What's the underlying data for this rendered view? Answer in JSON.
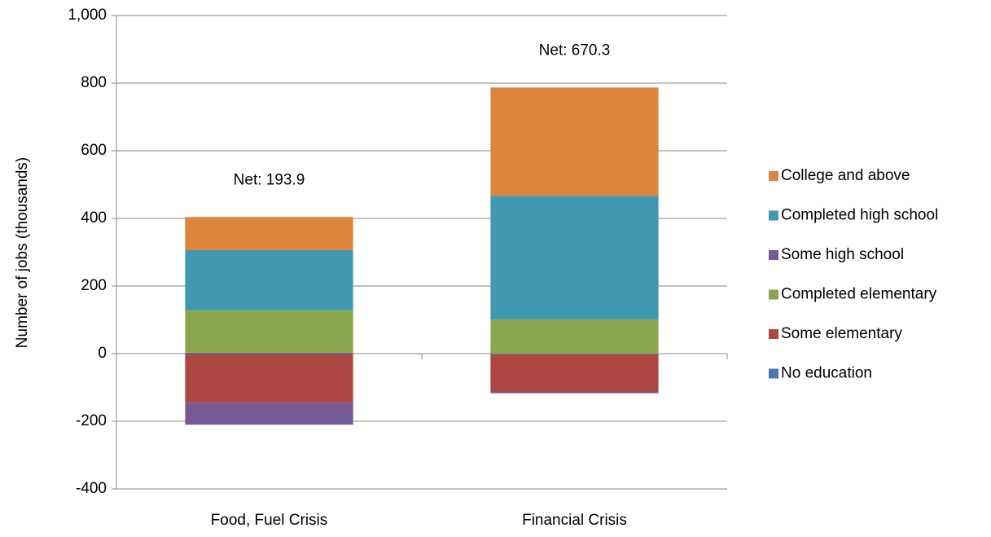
{
  "chart_data": {
    "type": "stacked_bar",
    "y_label": "Number of jobs (thousands)",
    "categories": [
      "Food, Fuel Crisis",
      "Financial Crisis"
    ],
    "series": [
      {
        "name": "No education",
        "color": "#4676af",
        "values": [
          3,
          -2
        ]
      },
      {
        "name": "Some elementary",
        "color": "#ac4744",
        "values": [
          -145,
          -110
        ]
      },
      {
        "name": "Completed elementary",
        "color": "#8ba64d",
        "values": [
          125,
          101
        ]
      },
      {
        "name": "Some high school",
        "color": "#735a94",
        "values": [
          -65,
          -5
        ]
      },
      {
        "name": "Completed high school",
        "color": "#4199b1",
        "values": [
          178,
          366
        ]
      },
      {
        "name": "College and above",
        "color": "#dd843d",
        "values": [
          98,
          320
        ]
      }
    ],
    "annotations": [
      "Net: 193.9",
      "Net: 670.3"
    ],
    "ylim": [
      -400,
      1000
    ],
    "yticks": [
      -400,
      -200,
      0,
      200,
      400,
      600,
      800,
      {
        "value": 1000,
        "label": "1,000"
      }
    ],
    "grid": true,
    "legend": "right"
  }
}
